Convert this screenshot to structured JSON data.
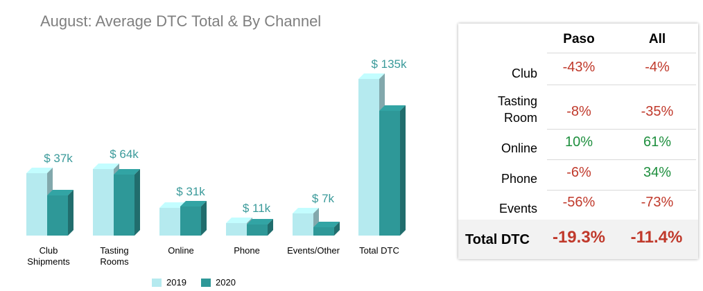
{
  "title": "August: Average DTC Total & By Channel",
  "colors": {
    "s2019": "#b5eaef",
    "s2020": "#2e9898",
    "label": "#3a9a9a",
    "negative": "#c0392b",
    "positive": "#1e8f3e"
  },
  "chart_data": {
    "type": "bar",
    "title": "August: Average DTC Total & By Channel",
    "categories": [
      [
        "Club",
        "Shipments"
      ],
      [
        "Tasting",
        "Rooms"
      ],
      [
        "Online"
      ],
      [
        "Phone"
      ],
      [
        "Events/Other"
      ],
      [
        "Total DTC"
      ]
    ],
    "series": [
      {
        "name": "2019",
        "values": [
          45,
          48,
          20,
          9,
          16,
          113
        ]
      },
      {
        "name": "2020",
        "values": [
          29,
          44,
          21,
          8,
          6,
          90
        ]
      }
    ],
    "data_labels": [
      "$ 37k",
      "$ 64k",
      "$ 31k",
      "$ 11k",
      "$ 7k",
      "$ 135k"
    ],
    "ylim": [
      0,
      120
    ],
    "grid": false,
    "legend": "bottom"
  },
  "table": {
    "columns": [
      "Paso",
      "All"
    ],
    "rows": [
      {
        "label": [
          "Club"
        ],
        "values": [
          "-43%",
          "-4%"
        ],
        "signs": [
          "neg",
          "neg"
        ]
      },
      {
        "label": [
          "Tasting",
          "Room"
        ],
        "values": [
          "-8%",
          "-35%"
        ],
        "signs": [
          "neg",
          "neg"
        ]
      },
      {
        "label": [
          "Online"
        ],
        "values": [
          "10%",
          "61%"
        ],
        "signs": [
          "pos",
          "pos"
        ]
      },
      {
        "label": [
          "Phone"
        ],
        "values": [
          "-6%",
          "34%"
        ],
        "signs": [
          "neg",
          "pos"
        ]
      },
      {
        "label": [
          "Events"
        ],
        "values": [
          "-56%",
          "-73%"
        ],
        "signs": [
          "neg",
          "neg"
        ]
      }
    ],
    "total": {
      "label": "Total DTC",
      "values": [
        "-19.3%",
        "-11.4%"
      ]
    }
  }
}
